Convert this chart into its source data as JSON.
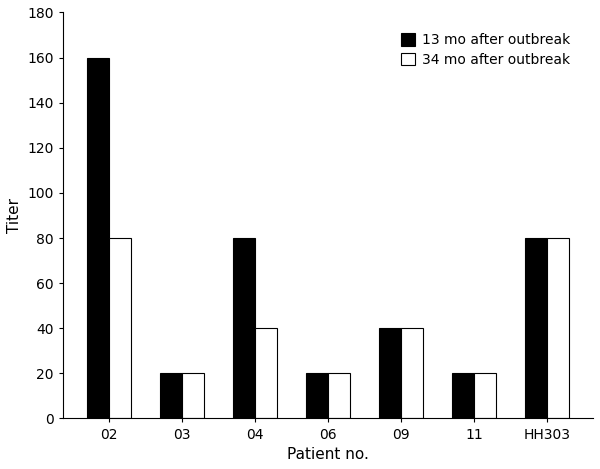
{
  "categories": [
    "02",
    "03",
    "04",
    "06",
    "09",
    "11",
    "HH303"
  ],
  "values_13mo": [
    160,
    20,
    80,
    20,
    40,
    20,
    80
  ],
  "values_34mo": [
    80,
    20,
    40,
    20,
    40,
    20,
    80
  ],
  "bar_color_13mo": "#000000",
  "bar_color_34mo": "#ffffff",
  "bar_edgecolor_34mo": "#000000",
  "bar_edgecolor_13mo": "#000000",
  "bar_width": 0.3,
  "legend_labels": [
    "13 mo after outbreak",
    "34 mo after outbreak"
  ],
  "xlabel": "Patient no.",
  "ylabel": "Titer",
  "ylim": [
    0,
    180
  ],
  "yticks": [
    0,
    20,
    40,
    60,
    80,
    100,
    120,
    140,
    160,
    180
  ],
  "title": "",
  "figsize": [
    6.0,
    4.69
  ],
  "dpi": 100,
  "background_color": "#ffffff",
  "tick_fontsize": 10,
  "label_fontsize": 11
}
